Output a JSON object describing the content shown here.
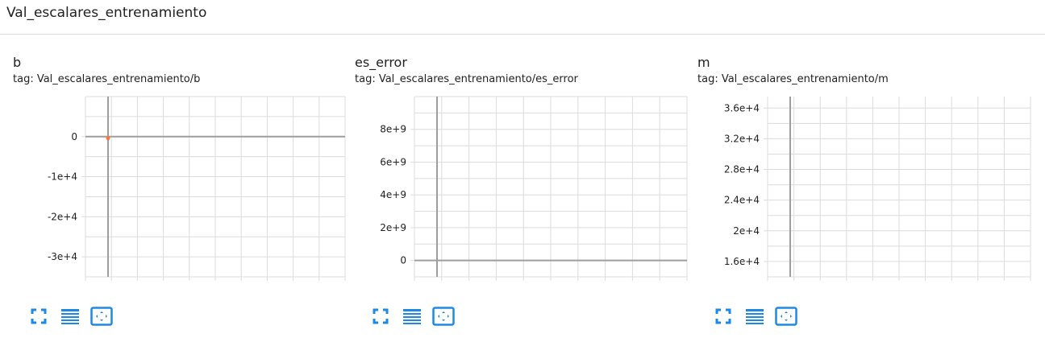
{
  "page": {
    "title": "Val_escalares_entrenamiento"
  },
  "colors": {
    "icon": "#1e88e5",
    "grid": "#dcdcdc",
    "axis": "#9e9e9e",
    "point": "#ff7043"
  },
  "toolbar": {
    "icons": [
      "fullscreen-icon",
      "data-list-icon",
      "fit-domain-icon"
    ]
  },
  "cards": [
    {
      "title": "b",
      "tag": "tag: Val_escalares_entrenamiento/b",
      "chart_data": {
        "type": "line",
        "title": "b",
        "yticks": [
          "0",
          "-1e+4",
          "-2e+4",
          "-3e+4"
        ],
        "ytick_values": [
          0,
          -10000,
          -20000,
          -30000
        ],
        "ylim": [
          -35000,
          10000
        ],
        "series": [
          {
            "values": [
              [
                0,
                0
              ]
            ]
          }
        ],
        "grid": true
      }
    },
    {
      "title": "es_error",
      "tag": "tag: Val_escalares_entrenamiento/es_error",
      "chart_data": {
        "type": "line",
        "title": "es_error",
        "yticks": [
          "8e+9",
          "6e+9",
          "4e+9",
          "2e+9",
          "0"
        ],
        "ytick_values": [
          8000000000,
          6000000000,
          4000000000,
          2000000000,
          0
        ],
        "ylim": [
          -1000000000,
          10000000000
        ],
        "series": [],
        "grid": true
      }
    },
    {
      "title": "m",
      "tag": "tag: Val_escalares_entrenamiento/m",
      "chart_data": {
        "type": "line",
        "title": "m",
        "yticks": [
          "3.6e+4",
          "3.2e+4",
          "2.8e+4",
          "2.4e+4",
          "2e+4",
          "1.6e+4"
        ],
        "ytick_values": [
          36000,
          32000,
          28000,
          24000,
          20000,
          16000
        ],
        "ylim": [
          14000,
          37500
        ],
        "series": [],
        "grid": true
      }
    }
  ]
}
